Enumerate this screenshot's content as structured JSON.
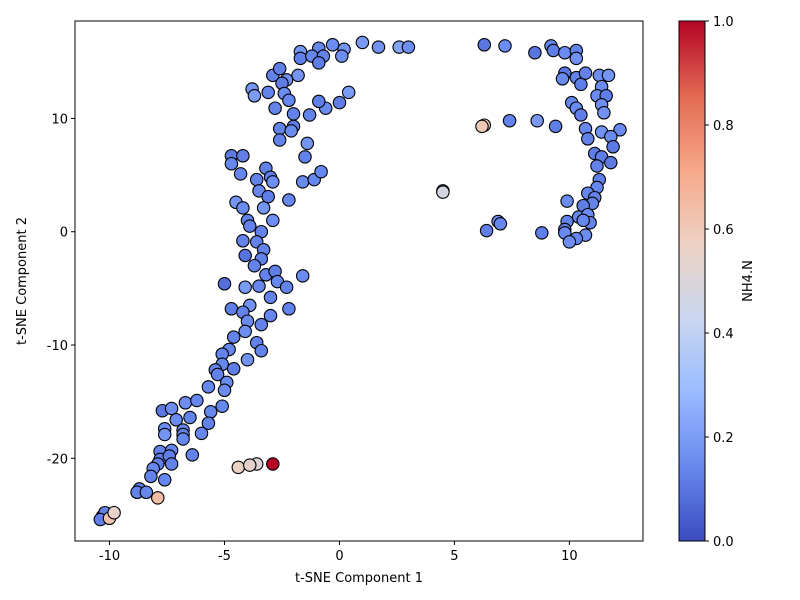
{
  "chart_data": {
    "type": "scatter",
    "title": "",
    "xlabel": "t-SNE Component 1",
    "ylabel": "t-SNE Component 2",
    "colorbar_label": "NH4.N",
    "colormap": "coolwarm",
    "color_range": [
      0.0,
      1.0
    ],
    "colorbar_ticks": [
      "0.0",
      "0.2",
      "0.4",
      "0.6",
      "0.8",
      "1.0"
    ],
    "colormap_stops": [
      "#3b4cc0",
      "#6788ee",
      "#9abbff",
      "#c9d7f0",
      "#edd1c2",
      "#f7a889",
      "#e26952",
      "#b40426"
    ],
    "xlim": [
      -11.5,
      13.2
    ],
    "ylim": [
      -27.3,
      18.6
    ],
    "x_ticks": [
      "-10",
      "-5",
      "0",
      "5",
      "10"
    ],
    "x_tick_values": [
      -10,
      -5,
      0,
      5,
      10
    ],
    "y_ticks": [
      "-20",
      "-10",
      "0",
      "10"
    ],
    "y_tick_values": [
      -20,
      -10,
      0,
      10
    ],
    "grid": false,
    "legend": "none",
    "marker_edge_color": "#000000",
    "points": [
      [
        -1.7,
        15.9,
        0.18
      ],
      [
        -0.9,
        16.2,
        0.14
      ],
      [
        -0.3,
        16.5,
        0.16
      ],
      [
        0.2,
        16.1,
        0.18
      ],
      [
        1.0,
        16.7,
        0.19
      ],
      [
        1.7,
        16.3,
        0.17
      ],
      [
        2.6,
        16.3,
        0.22
      ],
      [
        3.0,
        16.3,
        0.16
      ],
      [
        -1.7,
        15.3,
        0.12
      ],
      [
        -1.2,
        15.5,
        0.14
      ],
      [
        -0.7,
        15.5,
        0.13
      ],
      [
        0.1,
        15.5,
        0.16
      ],
      [
        -0.9,
        14.9,
        0.12
      ],
      [
        -2.9,
        13.8,
        0.13
      ],
      [
        -2.6,
        14.4,
        0.12
      ],
      [
        -2.3,
        13.4,
        0.17
      ],
      [
        -2.5,
        13.1,
        0.12
      ],
      [
        -1.8,
        13.8,
        0.18
      ],
      [
        -3.8,
        12.6,
        0.18
      ],
      [
        -3.7,
        12.0,
        0.2
      ],
      [
        -3.1,
        12.3,
        0.13
      ],
      [
        -2.4,
        12.2,
        0.15
      ],
      [
        -2.2,
        11.6,
        0.14
      ],
      [
        -2.8,
        10.9,
        0.13
      ],
      [
        -2.0,
        10.4,
        0.13
      ],
      [
        -1.3,
        10.3,
        0.13
      ],
      [
        -0.6,
        10.9,
        0.15
      ],
      [
        0.0,
        11.4,
        0.12
      ],
      [
        -0.9,
        11.5,
        0.12
      ],
      [
        0.4,
        12.3,
        0.2
      ],
      [
        -2.6,
        9.1,
        0.13
      ],
      [
        -2.0,
        9.3,
        0.12
      ],
      [
        -2.1,
        8.9,
        0.15
      ],
      [
        -1.4,
        7.8,
        0.18
      ],
      [
        -2.6,
        8.1,
        0.13
      ],
      [
        -1.5,
        6.6,
        0.13
      ],
      [
        -3.2,
        5.6,
        0.13
      ],
      [
        -4.7,
        6.7,
        0.11
      ],
      [
        -4.7,
        6.0,
        0.14
      ],
      [
        -4.2,
        6.7,
        0.12
      ],
      [
        -3.0,
        4.8,
        0.12
      ],
      [
        -3.6,
        4.6,
        0.13
      ],
      [
        -2.9,
        4.4,
        0.16
      ],
      [
        -1.6,
        4.4,
        0.15
      ],
      [
        -1.1,
        4.6,
        0.14
      ],
      [
        -0.8,
        5.3,
        0.14
      ],
      [
        -4.3,
        5.1,
        0.14
      ],
      [
        -3.5,
        3.6,
        0.14
      ],
      [
        -3.1,
        3.1,
        0.12
      ],
      [
        -2.2,
        2.8,
        0.14
      ],
      [
        -4.5,
        2.6,
        0.18
      ],
      [
        -4.2,
        2.1,
        0.15
      ],
      [
        -3.3,
        2.1,
        0.18
      ],
      [
        -4.0,
        1.0,
        0.13
      ],
      [
        -2.9,
        1.0,
        0.16
      ],
      [
        -3.9,
        0.5,
        0.13
      ],
      [
        -3.4,
        0.0,
        0.13
      ],
      [
        -4.2,
        -0.8,
        0.13
      ],
      [
        -3.6,
        -0.9,
        0.13
      ],
      [
        -3.3,
        -1.6,
        0.13
      ],
      [
        -4.1,
        -2.1,
        0.09
      ],
      [
        -3.4,
        -2.4,
        0.13
      ],
      [
        -3.7,
        -3.0,
        0.13
      ],
      [
        -3.2,
        -3.8,
        0.13
      ],
      [
        -2.8,
        -3.5,
        0.12
      ],
      [
        -2.7,
        -4.4,
        0.14
      ],
      [
        -1.6,
        -3.9,
        0.15
      ],
      [
        -2.3,
        -4.9,
        0.13
      ],
      [
        -5.0,
        -4.6,
        0.08
      ],
      [
        -4.1,
        -4.9,
        0.2
      ],
      [
        -3.5,
        -4.8,
        0.14
      ],
      [
        -3.9,
        -6.5,
        0.17
      ],
      [
        -3.0,
        -5.8,
        0.13
      ],
      [
        -2.2,
        -6.8,
        0.13
      ],
      [
        -4.7,
        -6.8,
        0.12
      ],
      [
        -4.2,
        -7.1,
        0.13
      ],
      [
        -3.0,
        -7.4,
        0.14
      ],
      [
        -4.0,
        -7.9,
        0.15
      ],
      [
        -3.4,
        -8.2,
        0.13
      ],
      [
        -4.1,
        -8.8,
        0.16
      ],
      [
        -4.6,
        -9.3,
        0.13
      ],
      [
        -3.6,
        -9.8,
        0.13
      ],
      [
        -4.8,
        -10.4,
        0.14
      ],
      [
        -3.4,
        -10.5,
        0.13
      ],
      [
        -5.1,
        -10.8,
        0.13
      ],
      [
        -4.0,
        -11.3,
        0.17
      ],
      [
        -5.1,
        -11.7,
        0.14
      ],
      [
        -5.4,
        -12.2,
        0.13
      ],
      [
        -4.6,
        -12.1,
        0.12
      ],
      [
        -5.3,
        -12.6,
        0.13
      ],
      [
        -4.9,
        -13.3,
        0.15
      ],
      [
        -5.7,
        -13.7,
        0.14
      ],
      [
        -5.0,
        -14.0,
        0.15
      ],
      [
        -5.1,
        -15.4,
        0.14
      ],
      [
        -5.6,
        -15.9,
        0.14
      ],
      [
        -7.7,
        -15.8,
        0.1
      ],
      [
        -7.3,
        -15.6,
        0.16
      ],
      [
        -6.7,
        -15.1,
        0.16
      ],
      [
        -6.2,
        -14.9,
        0.14
      ],
      [
        -6.5,
        -16.4,
        0.13
      ],
      [
        -7.1,
        -16.6,
        0.15
      ],
      [
        -5.7,
        -16.9,
        0.13
      ],
      [
        -7.6,
        -17.4,
        0.16
      ],
      [
        -6.8,
        -17.5,
        0.14
      ],
      [
        -6.8,
        -17.9,
        0.13
      ],
      [
        -7.6,
        -17.9,
        0.18
      ],
      [
        -6.8,
        -18.3,
        0.14
      ],
      [
        -6.0,
        -17.8,
        0.14
      ],
      [
        -7.8,
        -19.4,
        0.13
      ],
      [
        -7.3,
        -19.3,
        0.14
      ],
      [
        -6.4,
        -19.7,
        0.13
      ],
      [
        -7.8,
        -20.1,
        0.12
      ],
      [
        -7.4,
        -19.8,
        0.12
      ],
      [
        -7.9,
        -20.5,
        0.12
      ],
      [
        -7.3,
        -20.5,
        0.13
      ],
      [
        -8.1,
        -20.9,
        0.14
      ],
      [
        -8.2,
        -21.6,
        0.13
      ],
      [
        -7.6,
        -21.9,
        0.14
      ],
      [
        -8.7,
        -22.7,
        0.12
      ],
      [
        -8.8,
        -23.0,
        0.13
      ],
      [
        -8.4,
        -23.0,
        0.14
      ],
      [
        -7.9,
        -23.5,
        0.64
      ],
      [
        -10.3,
        -25.1,
        0.12
      ],
      [
        -10.1,
        -24.9,
        0.14
      ],
      [
        -10.2,
        -24.8,
        0.13
      ],
      [
        -10.4,
        -25.4,
        0.12
      ],
      [
        -10.0,
        -25.3,
        0.62
      ],
      [
        -9.8,
        -24.8,
        0.55
      ],
      [
        -4.4,
        -20.8,
        0.56
      ],
      [
        -3.6,
        -20.5,
        0.52
      ],
      [
        -3.9,
        -20.6,
        0.54
      ],
      [
        -2.9,
        -20.5,
        1.0
      ],
      [
        4.5,
        3.6,
        0.48
      ],
      [
        4.5,
        3.5,
        0.47
      ],
      [
        6.3,
        9.4,
        0.58
      ],
      [
        6.2,
        9.3,
        0.6
      ],
      [
        6.3,
        16.5,
        0.1
      ],
      [
        7.2,
        16.4,
        0.15
      ],
      [
        8.5,
        15.8,
        0.1
      ],
      [
        9.2,
        16.4,
        0.14
      ],
      [
        9.3,
        16.0,
        0.12
      ],
      [
        9.8,
        15.8,
        0.15
      ],
      [
        10.3,
        16.0,
        0.13
      ],
      [
        10.3,
        15.3,
        0.17
      ],
      [
        9.8,
        14.0,
        0.1
      ],
      [
        9.7,
        13.5,
        0.15
      ],
      [
        10.3,
        13.6,
        0.13
      ],
      [
        10.5,
        13.0,
        0.12
      ],
      [
        10.7,
        14.0,
        0.13
      ],
      [
        11.3,
        13.8,
        0.16
      ],
      [
        11.7,
        13.8,
        0.18
      ],
      [
        11.4,
        12.8,
        0.15
      ],
      [
        11.2,
        12.0,
        0.15
      ],
      [
        11.6,
        12.0,
        0.12
      ],
      [
        10.1,
        11.4,
        0.14
      ],
      [
        10.3,
        10.9,
        0.15
      ],
      [
        10.5,
        10.3,
        0.12
      ],
      [
        11.4,
        11.2,
        0.16
      ],
      [
        11.5,
        10.5,
        0.17
      ],
      [
        7.4,
        9.8,
        0.13
      ],
      [
        8.6,
        9.8,
        0.19
      ],
      [
        9.4,
        9.3,
        0.12
      ],
      [
        10.7,
        9.1,
        0.14
      ],
      [
        11.4,
        8.8,
        0.17
      ],
      [
        12.2,
        9.0,
        0.15
      ],
      [
        11.8,
        8.4,
        0.15
      ],
      [
        10.8,
        8.2,
        0.13
      ],
      [
        11.9,
        7.5,
        0.11
      ],
      [
        11.1,
        6.9,
        0.12
      ],
      [
        11.4,
        6.6,
        0.12
      ],
      [
        11.8,
        6.1,
        0.11
      ],
      [
        11.2,
        5.8,
        0.13
      ],
      [
        11.3,
        4.6,
        0.12
      ],
      [
        11.2,
        3.9,
        0.14
      ],
      [
        10.8,
        3.4,
        0.14
      ],
      [
        11.1,
        3.0,
        0.13
      ],
      [
        11.0,
        2.5,
        0.13
      ],
      [
        10.6,
        2.3,
        0.12
      ],
      [
        9.9,
        2.7,
        0.15
      ],
      [
        10.4,
        1.3,
        0.14
      ],
      [
        10.8,
        1.5,
        0.15
      ],
      [
        10.9,
        0.8,
        0.13
      ],
      [
        10.6,
        1.0,
        0.14
      ],
      [
        9.9,
        0.9,
        0.13
      ],
      [
        9.8,
        0.2,
        0.12
      ],
      [
        9.8,
        -0.1,
        0.15
      ],
      [
        8.8,
        -0.1,
        0.12
      ],
      [
        10.7,
        -0.3,
        0.16
      ],
      [
        10.3,
        -0.6,
        0.14
      ],
      [
        10.0,
        -0.9,
        0.16
      ],
      [
        6.9,
        0.9,
        0.16
      ],
      [
        7.0,
        0.7,
        0.14
      ],
      [
        6.4,
        0.1,
        0.12
      ]
    ]
  }
}
